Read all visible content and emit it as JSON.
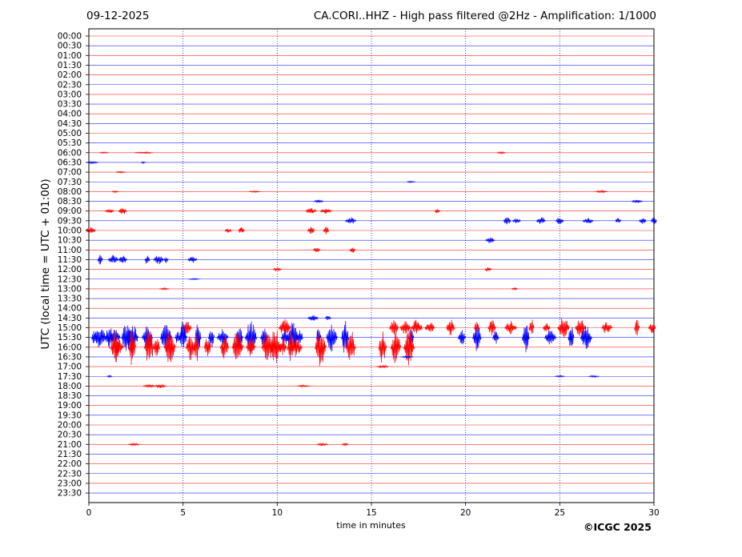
{
  "header": {
    "date": "09-12-2025",
    "title": "CA.CORI..HHZ - High pass filtered @2Hz - Amplification: 1/1000"
  },
  "footer": {
    "copyright": "©ICGC 2025"
  },
  "chart_data": {
    "type": "seismogram",
    "station": "CA.CORI..HHZ",
    "xlabel": "time in minutes",
    "ylabel": "UTC (local time = UTC + 01:00)",
    "xlim": [
      0,
      30
    ],
    "x_ticks": [
      0,
      5,
      10,
      15,
      20,
      25,
      30
    ],
    "vertical_gridlines": [
      5,
      10,
      15,
      20,
      25
    ],
    "grid": "dotted vertical",
    "row_interval_minutes": 30,
    "row_labels": [
      "00:00",
      "00:30",
      "01:00",
      "01:30",
      "02:00",
      "02:30",
      "03:00",
      "03:30",
      "04:00",
      "04:30",
      "05:00",
      "05:30",
      "06:00",
      "06:30",
      "07:00",
      "07:30",
      "08:00",
      "08:30",
      "09:00",
      "09:30",
      "10:00",
      "10:30",
      "11:00",
      "11:30",
      "12:00",
      "12:30",
      "13:00",
      "13:30",
      "14:00",
      "14:30",
      "15:00",
      "15:30",
      "16:00",
      "16:30",
      "17:00",
      "17:30",
      "18:00",
      "18:30",
      "19:00",
      "19:30",
      "20:00",
      "20:30",
      "21:00",
      "21:30",
      "22:00",
      "22:30",
      "23:00",
      "23:30"
    ],
    "trace_colors": [
      "#ff0000",
      "#0000ff"
    ],
    "color_rule": "rows starting on the hour are red, rows starting on the half hour are blue",
    "bursts": [
      {
        "row": "06:00",
        "t": [
          0.8,
          2.7,
          3.1,
          21.9
        ],
        "amp": 0.08
      },
      {
        "row": "06:30",
        "t": [
          0.2,
          2.9
        ],
        "amp": 0.1
      },
      {
        "row": "07:00",
        "t": [
          1.7
        ],
        "amp": 0.08
      },
      {
        "row": "07:30",
        "t": [
          17.1
        ],
        "amp": 0.08
      },
      {
        "row": "08:00",
        "t": [
          1.4,
          8.8,
          27.2
        ],
        "amp": 0.1
      },
      {
        "row": "08:30",
        "t": [
          12.2,
          29.1
        ],
        "amp": 0.15
      },
      {
        "row": "09:00",
        "t": [
          1.1,
          1.8,
          11.8,
          12.6,
          18.5
        ],
        "amp": 0.3
      },
      {
        "row": "09:30",
        "t": [
          13.9,
          22.2,
          22.7,
          24,
          25,
          26.5,
          28.1,
          29.4,
          30
        ],
        "amp": 0.35
      },
      {
        "row": "10:00",
        "t": [
          0.1,
          7.4,
          8.1,
          11.8,
          12.6
        ],
        "amp": 0.3
      },
      {
        "row": "10:30",
        "t": [
          21.3
        ],
        "amp": 0.3
      },
      {
        "row": "11:00",
        "t": [
          12.1,
          14
        ],
        "amp": 0.25
      },
      {
        "row": "11:30",
        "t": [
          0.6,
          1.3,
          1.8,
          3.1,
          3.7,
          4.1,
          5.5
        ],
        "amp": 0.4
      },
      {
        "row": "12:00",
        "t": [
          10,
          21.2
        ],
        "amp": 0.2
      },
      {
        "row": "12:30",
        "t": [
          5.6
        ],
        "amp": 0.08
      },
      {
        "row": "13:00",
        "t": [
          4,
          22.6
        ],
        "amp": 0.08
      },
      {
        "row": "14:30",
        "t": [
          11.9,
          12.7
        ],
        "amp": 0.25
      },
      {
        "row": "15:00",
        "t": [
          5.2,
          10.4,
          16.2,
          16.8,
          17.4,
          18.1,
          19.2,
          20.6,
          21.4,
          22.4,
          23.5,
          24.3,
          25.2,
          26.1,
          27.5,
          29.1,
          29.9
        ],
        "amp": 0.9
      },
      {
        "row": "15:30",
        "t": [
          0.3,
          0.6,
          1.1,
          1.4,
          2,
          2.3,
          3.1,
          4.1,
          4.7,
          5,
          5.8,
          6.5,
          7.1,
          8,
          8.6,
          9.3,
          10.4,
          10.8,
          11.2,
          12.2,
          12.9,
          13.6,
          17.1,
          19.8,
          20.6,
          21.6,
          23.2,
          24.5,
          25.6,
          26.4
        ],
        "amp": 1.3
      },
      {
        "row": "16:00",
        "t": [
          1.4,
          1.6,
          2.3,
          3.2,
          3.6,
          4.3,
          5.4,
          5.7,
          6.3,
          7.2,
          7.9,
          8.6,
          9.5,
          9.9,
          10.3,
          10.7,
          11,
          12.3,
          13.9,
          15.6,
          16.3,
          17
        ],
        "amp": 1.5
      },
      {
        "row": "16:30",
        "t": [
          16.9
        ],
        "amp": 0.1
      },
      {
        "row": "17:00",
        "t": [
          15.6
        ],
        "amp": 0.1
      },
      {
        "row": "17:30",
        "t": [
          1.1,
          25,
          26.8
        ],
        "amp": 0.1
      },
      {
        "row": "18:00",
        "t": [
          3.2,
          3.8,
          11.4
        ],
        "amp": 0.15
      },
      {
        "row": "21:00",
        "t": [
          2.4,
          12.4,
          13.6
        ],
        "amp": 0.15
      }
    ]
  }
}
